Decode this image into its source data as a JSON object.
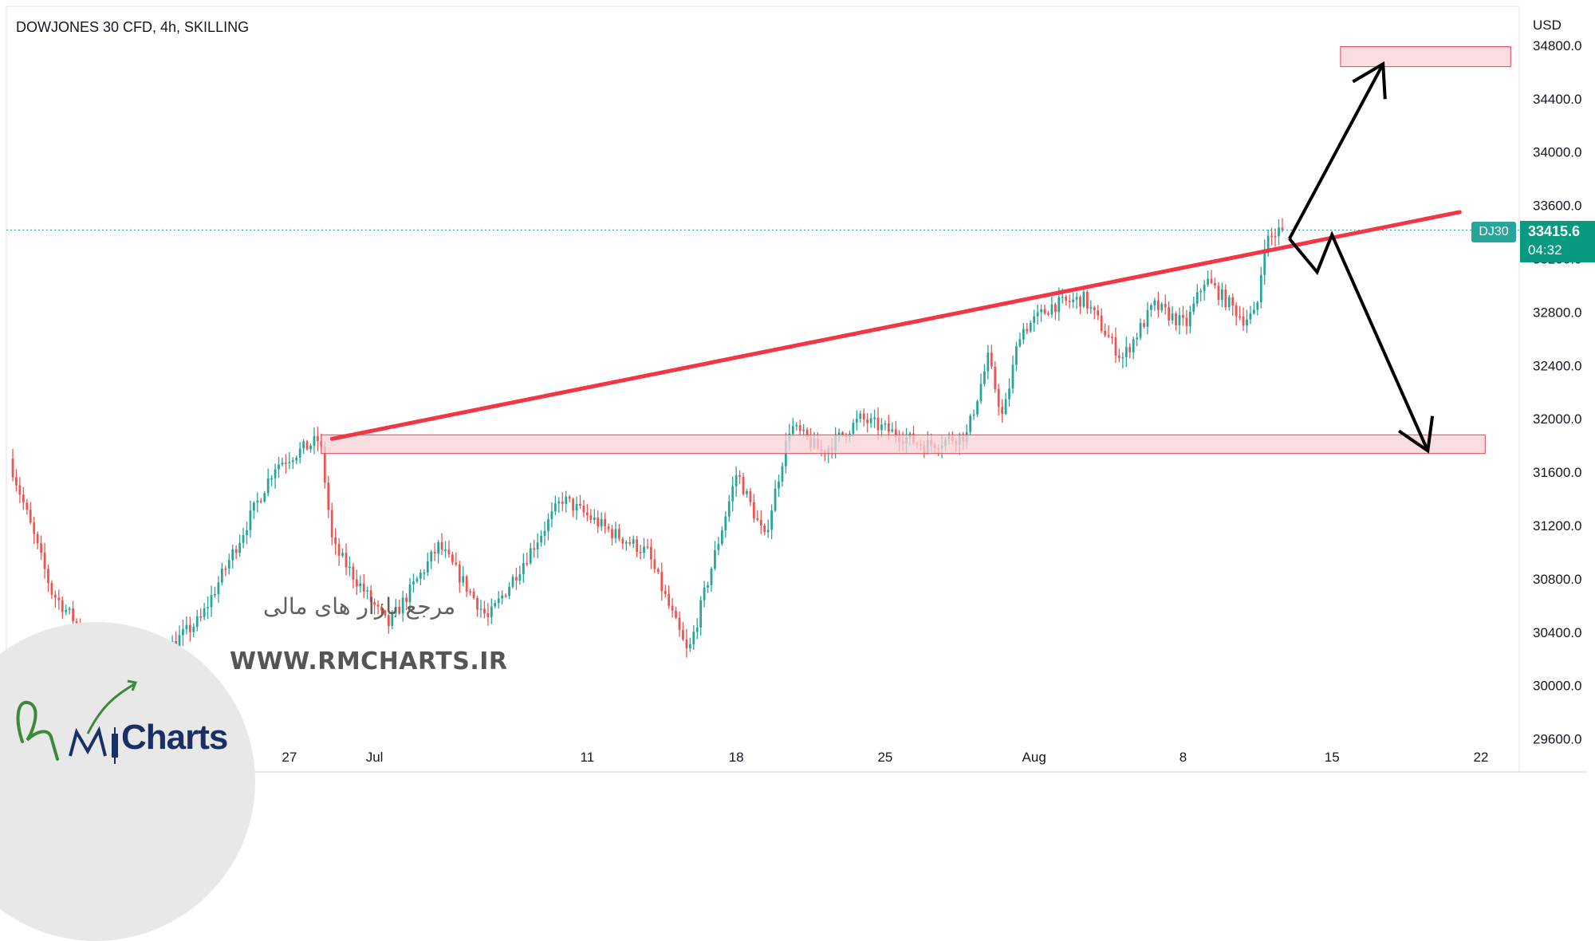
{
  "header": {
    "title": "DOWJONES 30 CFD, 4h, SKILLING",
    "currency": "USD"
  },
  "price_tag": {
    "symbol": "DJ30",
    "price": "33415.6",
    "countdown": "04:32"
  },
  "watermark": {
    "persian": "مرجع بازار های مالی",
    "url": "WWW.RMCHARTS.IR",
    "logo_text": "Charts"
  },
  "colors": {
    "up": "#26a69a",
    "down": "#ef5350",
    "trendline": "#f23645",
    "zone_fill": "#f8d2d5",
    "zone_stroke": "#e04455",
    "arrow": "#000000",
    "price_line": "#26a69a"
  },
  "chart_data": {
    "type": "candlestick",
    "title": "DOWJONES 30 CFD, 4h, SKILLING",
    "ylabel": "USD",
    "ylim": [
      29520,
      35140
    ],
    "y_ticks": [
      "29600.0",
      "30000.0",
      "30400.0",
      "30800.0",
      "31200.0",
      "31600.0",
      "32000.0",
      "32400.0",
      "32800.0",
      "33200.0",
      "33600.0",
      "34000.0",
      "34400.0",
      "34800.0"
    ],
    "x_ticks": [
      {
        "label": "27",
        "day": 27.0
      },
      {
        "label": "Jul",
        "day": 31.0
      },
      {
        "label": "11",
        "day": 41.0
      },
      {
        "label": "18",
        "day": 48.0
      },
      {
        "label": "25",
        "day": 55.0
      },
      {
        "label": "Aug",
        "day": 62.0
      },
      {
        "label": "8",
        "day": 69.0
      },
      {
        "label": "15",
        "day": 76.0
      },
      {
        "label": "22",
        "day": 83.0
      }
    ],
    "last_price": 33415.6,
    "key_points": [
      {
        "day": 14.0,
        "price": 31700
      },
      {
        "day": 16.0,
        "price": 30700
      },
      {
        "day": 19.5,
        "price": 30000
      },
      {
        "day": 23.0,
        "price": 30500
      },
      {
        "day": 26.5,
        "price": 31650
      },
      {
        "day": 28.6,
        "price": 31850
      },
      {
        "day": 29.2,
        "price": 31050
      },
      {
        "day": 31.8,
        "price": 30450
      },
      {
        "day": 34.2,
        "price": 31050
      },
      {
        "day": 36.5,
        "price": 30500
      },
      {
        "day": 40.0,
        "price": 31400
      },
      {
        "day": 42.3,
        "price": 31150
      },
      {
        "day": 44.0,
        "price": 31000
      },
      {
        "day": 45.9,
        "price": 30230
      },
      {
        "day": 48.2,
        "price": 31600
      },
      {
        "day": 49.5,
        "price": 31100
      },
      {
        "day": 50.7,
        "price": 31950
      },
      {
        "day": 52.2,
        "price": 31750
      },
      {
        "day": 54.0,
        "price": 32000
      },
      {
        "day": 57.0,
        "price": 31800
      },
      {
        "day": 59.0,
        "price": 31880
      },
      {
        "day": 60.0,
        "price": 32450
      },
      {
        "day": 60.7,
        "price": 32000
      },
      {
        "day": 61.5,
        "price": 32650
      },
      {
        "day": 63.0,
        "price": 32850
      },
      {
        "day": 64.5,
        "price": 32900
      },
      {
        "day": 66.3,
        "price": 32450
      },
      {
        "day": 67.8,
        "price": 32850
      },
      {
        "day": 69.3,
        "price": 32700
      },
      {
        "day": 70.2,
        "price": 33050
      },
      {
        "day": 72.0,
        "price": 32750
      },
      {
        "day": 72.6,
        "price": 32780
      },
      {
        "day": 73.0,
        "price": 33320
      },
      {
        "day": 73.7,
        "price": 33415.6
      }
    ],
    "annotations": {
      "trendline": {
        "start": {
          "day": 29.0,
          "price": 31850
        },
        "end": {
          "day": 82.0,
          "price": 33550
        }
      },
      "support_zone": {
        "day_start": 28.5,
        "day_end": 83.2,
        "price_low": 31740,
        "price_high": 31880
      },
      "target_zone": {
        "day_start": 76.4,
        "day_end": 84.4,
        "price_low": 34640,
        "price_high": 34790
      },
      "bull_path": [
        {
          "day": 74.0,
          "price": 33350
        },
        {
          "day": 78.4,
          "price": 34660
        }
      ],
      "bear_path": [
        {
          "day": 74.0,
          "price": 33350
        },
        {
          "day": 75.3,
          "price": 33100
        },
        {
          "day": 76.0,
          "price": 33380
        },
        {
          "day": 80.5,
          "price": 31760
        }
      ]
    }
  }
}
